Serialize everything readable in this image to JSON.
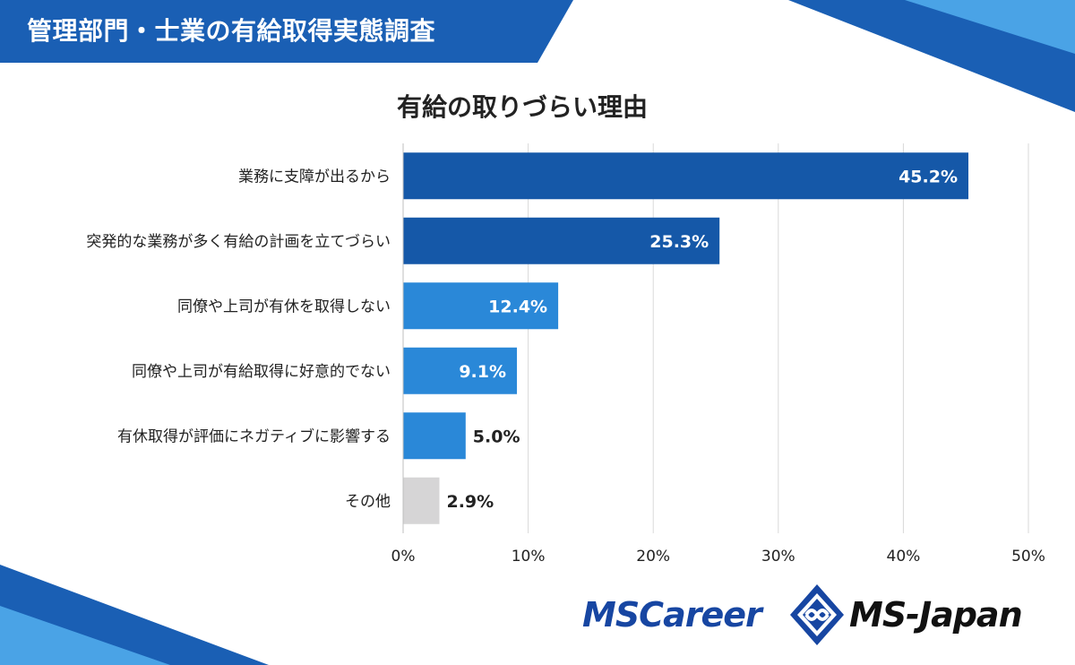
{
  "header": {
    "title": "管理部門・士業の有給取得実態調査"
  },
  "colors": {
    "header_bg": "#1a5fb4",
    "bar_dark": "#1558a8",
    "bar_light": "#2a88d8",
    "bar_grey": "#d6d5d6",
    "grid": "#d9d9d9"
  },
  "chart_data": {
    "type": "bar",
    "orientation": "horizontal",
    "title": "有給の取りづらい理由",
    "categories": [
      "業務に支障が出るから",
      "突発的な業務が多く有給の計画を立てづらい",
      "同僚や上司が有休を取得しない",
      "同僚や上司が有給取得に好意的でない",
      "有休取得が評価にネガティブに影響する",
      "その他"
    ],
    "values": [
      45.2,
      25.3,
      12.4,
      9.1,
      5.0,
      2.9
    ],
    "data_labels": [
      "45.2%",
      "25.3%",
      "12.4%",
      "9.1%",
      "5.0%",
      "2.9%"
    ],
    "bar_colors": [
      "#1558a8",
      "#1558a8",
      "#2a88d8",
      "#2a88d8",
      "#2a88d8",
      "#d6d5d6"
    ],
    "xlim": [
      0,
      50
    ],
    "xticks": [
      0,
      10,
      20,
      30,
      40,
      50
    ],
    "xtick_labels": [
      "0%",
      "10%",
      "20%",
      "30%",
      "40%",
      "50%"
    ],
    "grid": true,
    "xlabel": "",
    "ylabel": ""
  },
  "logos": {
    "left": "MSCareer",
    "right": "MS-Japan",
    "mark_icon": "ms-japan-diamond-logo"
  }
}
